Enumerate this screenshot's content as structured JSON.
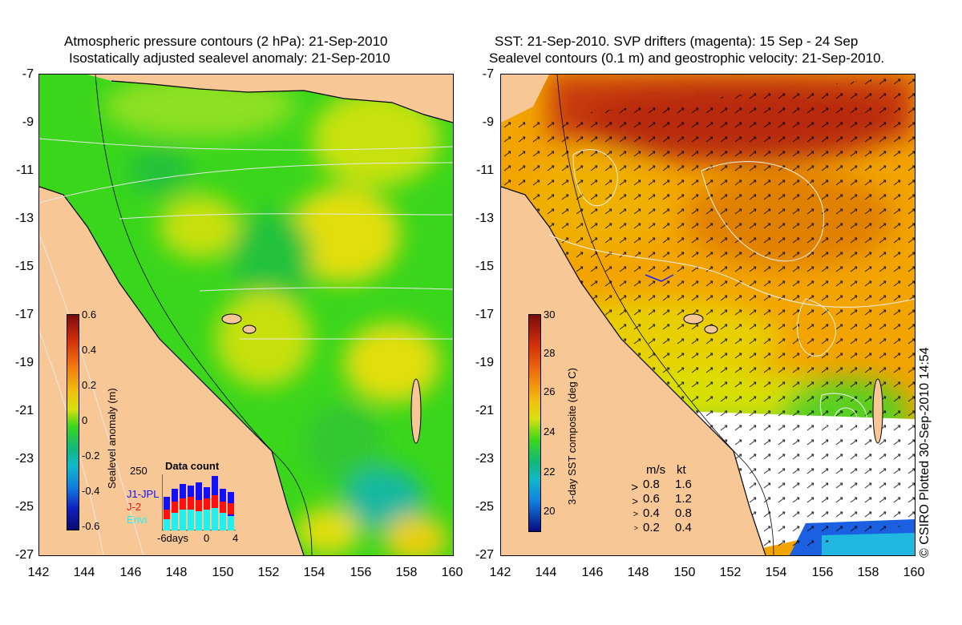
{
  "left_panel": {
    "title_line1": "Atmospheric pressure contours (2 hPa): 21-Sep-2010",
    "title_line2": "Isostatically adjusted sealevel anomaly: 21-Sep-2010",
    "colorbar": {
      "label": "Sealevel anomaly (m)",
      "ticks": [
        "0.6",
        "0.4",
        "0.2",
        "0",
        "-0.2",
        "-0.4",
        "-0.6"
      ],
      "range": [
        -0.6,
        0.6
      ]
    },
    "data_count": {
      "title": "Data count",
      "ymax_label": "250",
      "legend": [
        {
          "name": "J1-JPL",
          "color": "#1010ff"
        },
        {
          "name": "J-2",
          "color": "#ff1010"
        },
        {
          "name": "Envi",
          "color": "#20f0f0"
        }
      ],
      "x_labels": [
        "-6days",
        "0",
        "4"
      ]
    }
  },
  "right_panel": {
    "title_line1": "SST: 21-Sep-2010. SVP drifters (magenta): 15 Sep - 24 Sep",
    "title_line2": "Sealevel contours (0.1 m) and geostrophic velocity: 21-Sep-2010.",
    "colorbar": {
      "label": "3-day SST composite (deg C)",
      "ticks": [
        "30",
        "28",
        "26",
        "24",
        "22",
        "20"
      ],
      "range": [
        19,
        30
      ]
    },
    "velocity_legend": {
      "header_ms": "m/s",
      "header_kt": "kt",
      "rows": [
        {
          "ms": "0.8",
          "kt": "1.6"
        },
        {
          "ms": "0.6",
          "kt": "1.2"
        },
        {
          "ms": "0.4",
          "kt": "0.8"
        },
        {
          "ms": "0.2",
          "kt": "0.4"
        }
      ]
    }
  },
  "axes": {
    "y_ticks": [
      "-7",
      "-9",
      "-11",
      "-13",
      "-15",
      "-17",
      "-19",
      "-21",
      "-23",
      "-25",
      "-27"
    ],
    "x_ticks": [
      "142",
      "144",
      "146",
      "148",
      "150",
      "152",
      "154",
      "156",
      "158",
      "160"
    ]
  },
  "copyright": "© CSIRO Plotted 30-Sep-2010 14:54",
  "colors": {
    "land": "#f7c896",
    "sla_green": "#2ad41a",
    "sla_yellow": "#e8e000",
    "sst_warm": "#c83a10",
    "sst_orange": "#f2a400"
  }
}
